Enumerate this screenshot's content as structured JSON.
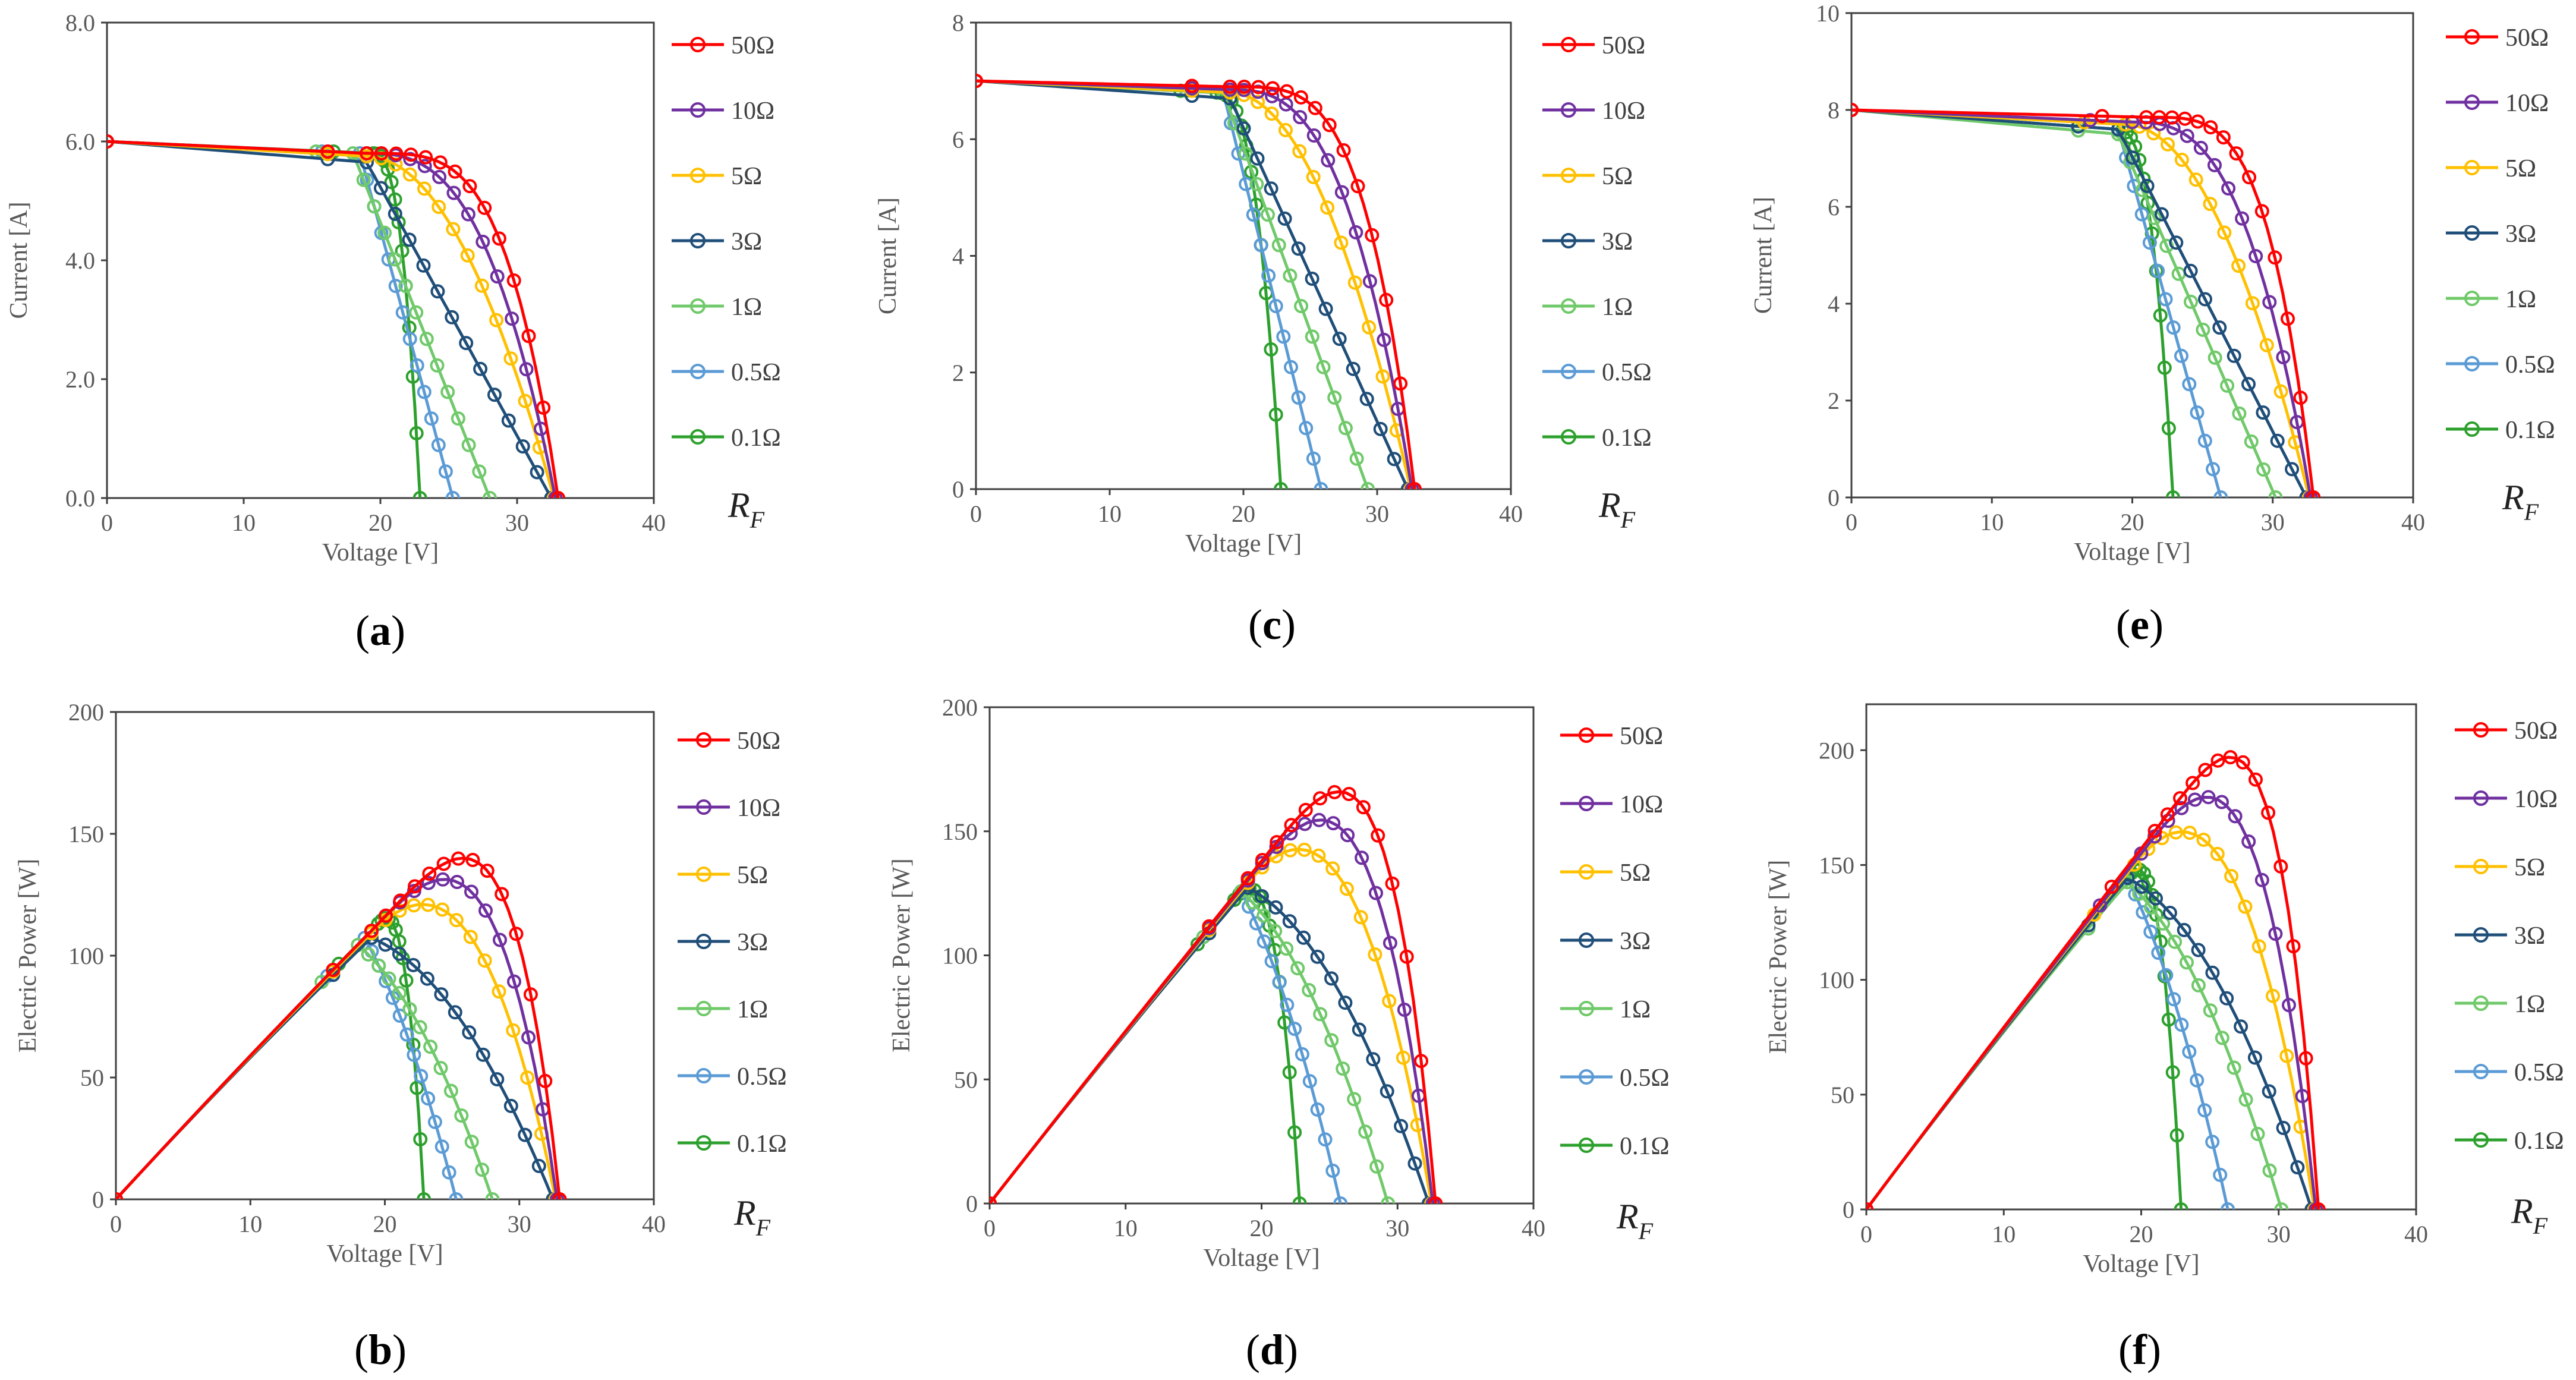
{
  "colors": {
    "50Ω": "#ff0000",
    "10Ω": "#7030a0",
    "5Ω": "#ffc000",
    "3Ω": "#1f4e79",
    "1Ω": "#70c96a",
    "0.5Ω": "#5b9bd5",
    "0.1Ω": "#2ca02c",
    "axis": "#404040",
    "text": "#595959"
  },
  "legend_title": {
    "main": "R",
    "sub": "F"
  },
  "chart_data": [
    {
      "panel": "(a)",
      "letter": "a",
      "type": "line",
      "xlabel": "Voltage [V]",
      "ylabel": "Current [A]",
      "xlim": [
        0,
        40
      ],
      "ylim": [
        0,
        8
      ],
      "xticks": [
        "0",
        "10",
        "20",
        "30",
        "40"
      ],
      "yticks": [
        "0.0",
        "2.0",
        "4.0",
        "6.0",
        "8.0"
      ],
      "series": [
        {
          "name": "50Ω",
          "voc": 33.0,
          "isc": 6.0,
          "vk": 19.0,
          "ik": 5.8,
          "sharp": 0.3
        },
        {
          "name": "10Ω",
          "voc": 32.8,
          "isc": 6.0,
          "vk": 19.0,
          "ik": 5.8,
          "sharp": 0.55
        },
        {
          "name": "5Ω",
          "voc": 32.7,
          "isc": 6.0,
          "vk": 19.0,
          "ik": 5.75,
          "sharp": 0.75
        },
        {
          "name": "3Ω",
          "voc": 32.5,
          "isc": 6.0,
          "vk": 19.0,
          "ik": 5.65,
          "sharp": 1.0
        },
        {
          "name": "1Ω",
          "voc": 28.0,
          "isc": 6.0,
          "vk": 18.0,
          "ik": 5.8,
          "sharp": 1.0
        },
        {
          "name": "0.5Ω",
          "voc": 25.3,
          "isc": 6.0,
          "vk": 18.5,
          "ik": 5.8,
          "sharp": 1.0
        },
        {
          "name": "0.1Ω",
          "voc": 22.9,
          "isc": 6.0,
          "vk": 19.5,
          "ik": 5.8,
          "sharp": 0.6
        }
      ]
    },
    {
      "panel": "(b)",
      "letter": "b",
      "type": "line",
      "xlabel": "Voltage [V]",
      "ylabel": "Electric Power [W]",
      "xlim": [
        0,
        40
      ],
      "ylim": [
        0,
        200
      ],
      "xticks": [
        "0",
        "10",
        "20",
        "30",
        "40"
      ],
      "yticks": [
        "0",
        "50",
        "100",
        "150",
        "200"
      ],
      "series": [
        {
          "name": "50Ω",
          "voc": 33.0,
          "isc": 6.0,
          "vk": 19.0,
          "ik": 5.8,
          "sharp": 0.3
        },
        {
          "name": "10Ω",
          "voc": 32.8,
          "isc": 6.0,
          "vk": 19.0,
          "ik": 5.8,
          "sharp": 0.55
        },
        {
          "name": "5Ω",
          "voc": 32.7,
          "isc": 6.0,
          "vk": 19.0,
          "ik": 5.75,
          "sharp": 0.75
        },
        {
          "name": "3Ω",
          "voc": 32.5,
          "isc": 6.0,
          "vk": 19.0,
          "ik": 5.65,
          "sharp": 1.0
        },
        {
          "name": "1Ω",
          "voc": 28.0,
          "isc": 6.0,
          "vk": 18.0,
          "ik": 5.8,
          "sharp": 1.0
        },
        {
          "name": "0.5Ω",
          "voc": 25.3,
          "isc": 6.0,
          "vk": 18.5,
          "ik": 5.8,
          "sharp": 1.0
        },
        {
          "name": "0.1Ω",
          "voc": 22.9,
          "isc": 6.0,
          "vk": 19.5,
          "ik": 5.8,
          "sharp": 0.6
        }
      ]
    },
    {
      "panel": "(c)",
      "letter": "c",
      "type": "line",
      "xlabel": "Voltage [V]",
      "ylabel": "Current [A]",
      "xlim": [
        0,
        40
      ],
      "ylim": [
        0,
        8
      ],
      "xticks": [
        "0",
        "10",
        "20",
        "30",
        "40"
      ],
      "yticks": [
        "0",
        "2",
        "4",
        "6",
        "8"
      ],
      "series": [
        {
          "name": "50Ω",
          "voc": 32.8,
          "isc": 7.0,
          "vk": 19.0,
          "ik": 6.9,
          "sharp": 0.3
        },
        {
          "name": "10Ω",
          "voc": 32.6,
          "isc": 7.0,
          "vk": 19.0,
          "ik": 6.85,
          "sharp": 0.55
        },
        {
          "name": "5Ω",
          "voc": 32.5,
          "isc": 7.0,
          "vk": 19.0,
          "ik": 6.8,
          "sharp": 0.75
        },
        {
          "name": "3Ω",
          "voc": 32.3,
          "isc": 7.0,
          "vk": 19.0,
          "ik": 6.7,
          "sharp": 1.0
        },
        {
          "name": "1Ω",
          "voc": 29.3,
          "isc": 7.0,
          "vk": 18.5,
          "ik": 6.8,
          "sharp": 1.0
        },
        {
          "name": "0.5Ω",
          "voc": 25.8,
          "isc": 7.0,
          "vk": 18.5,
          "ik": 6.8,
          "sharp": 1.0
        },
        {
          "name": "0.1Ω",
          "voc": 22.8,
          "isc": 7.0,
          "vk": 18.0,
          "ik": 6.8,
          "sharp": 0.6
        }
      ]
    },
    {
      "panel": "(d)",
      "letter": "d",
      "type": "line",
      "xlabel": "Voltage [V]",
      "ylabel": "Electric Power [W]",
      "xlim": [
        0,
        40
      ],
      "ylim": [
        0,
        200
      ],
      "xticks": [
        "0",
        "10",
        "20",
        "30",
        "40"
      ],
      "yticks": [
        "0",
        "50",
        "100",
        "150",
        "200"
      ],
      "series": [
        {
          "name": "50Ω",
          "voc": 32.8,
          "isc": 7.0,
          "vk": 19.0,
          "ik": 6.9,
          "sharp": 0.3
        },
        {
          "name": "10Ω",
          "voc": 32.6,
          "isc": 7.0,
          "vk": 19.0,
          "ik": 6.85,
          "sharp": 0.55
        },
        {
          "name": "5Ω",
          "voc": 32.5,
          "isc": 7.0,
          "vk": 19.0,
          "ik": 6.8,
          "sharp": 0.75
        },
        {
          "name": "3Ω",
          "voc": 32.3,
          "isc": 7.0,
          "vk": 19.0,
          "ik": 6.7,
          "sharp": 1.0
        },
        {
          "name": "1Ω",
          "voc": 29.3,
          "isc": 7.0,
          "vk": 18.5,
          "ik": 6.8,
          "sharp": 1.0
        },
        {
          "name": "0.5Ω",
          "voc": 25.8,
          "isc": 7.0,
          "vk": 18.5,
          "ik": 6.8,
          "sharp": 1.0
        },
        {
          "name": "0.1Ω",
          "voc": 22.8,
          "isc": 7.0,
          "vk": 18.0,
          "ik": 6.8,
          "sharp": 0.6
        }
      ]
    },
    {
      "panel": "(e)",
      "letter": "e",
      "type": "line",
      "xlabel": "Voltage [V]",
      "ylabel": "Current [A]",
      "xlim": [
        0,
        40
      ],
      "ylim": [
        0,
        10
      ],
      "xticks": [
        "0",
        "10",
        "20",
        "30",
        "40"
      ],
      "yticks": [
        "0",
        "2",
        "4",
        "6",
        "8",
        "10"
      ],
      "series": [
        {
          "name": "50Ω",
          "voc": 32.9,
          "isc": 8.0,
          "vk": 21.0,
          "ik": 7.85,
          "sharp": 0.3
        },
        {
          "name": "10Ω",
          "voc": 32.7,
          "isc": 8.0,
          "vk": 20.0,
          "ik": 7.75,
          "sharp": 0.55
        },
        {
          "name": "5Ω",
          "voc": 32.6,
          "isc": 8.0,
          "vk": 19.5,
          "ik": 7.7,
          "sharp": 0.75
        },
        {
          "name": "3Ω",
          "voc": 32.4,
          "isc": 8.0,
          "vk": 19.0,
          "ik": 7.6,
          "sharp": 1.0
        },
        {
          "name": "1Ω",
          "voc": 30.2,
          "isc": 8.0,
          "vk": 19.0,
          "ik": 7.5,
          "sharp": 1.0
        },
        {
          "name": "0.5Ω",
          "voc": 26.3,
          "isc": 8.0,
          "vk": 19.0,
          "ik": 7.6,
          "sharp": 1.0
        },
        {
          "name": "0.1Ω",
          "voc": 22.9,
          "isc": 8.0,
          "vk": 19.0,
          "ik": 7.6,
          "sharp": 0.6
        }
      ]
    },
    {
      "panel": "(f)",
      "letter": "f",
      "type": "line",
      "xlabel": "Voltage [V]",
      "ylabel": "Electric Power [W]",
      "xlim": [
        0,
        40
      ],
      "ylim": [
        0,
        220
      ],
      "xticks": [
        "0",
        "10",
        "20",
        "30",
        "40"
      ],
      "yticks": [
        "0",
        "50",
        "100",
        "150",
        "200"
      ],
      "series": [
        {
          "name": "50Ω",
          "voc": 32.9,
          "isc": 8.0,
          "vk": 21.0,
          "ik": 7.85,
          "sharp": 0.3
        },
        {
          "name": "10Ω",
          "voc": 32.7,
          "isc": 8.0,
          "vk": 20.0,
          "ik": 7.75,
          "sharp": 0.55
        },
        {
          "name": "5Ω",
          "voc": 32.6,
          "isc": 8.0,
          "vk": 19.5,
          "ik": 7.7,
          "sharp": 0.75
        },
        {
          "name": "3Ω",
          "voc": 32.4,
          "isc": 8.0,
          "vk": 19.0,
          "ik": 7.6,
          "sharp": 1.0
        },
        {
          "name": "1Ω",
          "voc": 30.2,
          "isc": 8.0,
          "vk": 19.0,
          "ik": 7.5,
          "sharp": 1.0
        },
        {
          "name": "0.5Ω",
          "voc": 26.3,
          "isc": 8.0,
          "vk": 19.0,
          "ik": 7.6,
          "sharp": 1.0
        },
        {
          "name": "0.1Ω",
          "voc": 22.9,
          "isc": 8.0,
          "vk": 19.0,
          "ik": 7.6,
          "sharp": 0.6
        }
      ]
    }
  ]
}
